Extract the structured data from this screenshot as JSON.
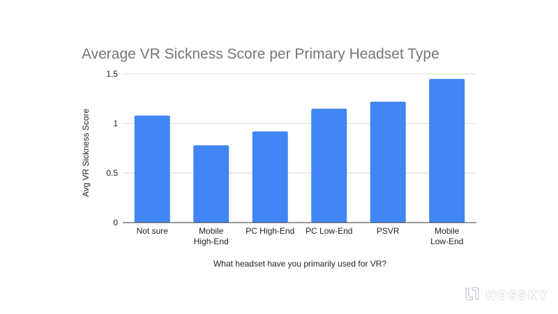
{
  "chart_data": {
    "type": "bar",
    "title": "Average VR Sickness Score per Primary Headset Type",
    "xlabel": "What headset have you primarily used for VR?",
    "ylabel": "Avg VR Sickness Score",
    "categories": [
      [
        "Not sure"
      ],
      [
        "Mobile",
        "High-End"
      ],
      [
        "PC High-End"
      ],
      [
        "PC Low-End"
      ],
      [
        "PSVR"
      ],
      [
        "Mobile",
        "Low-End"
      ]
    ],
    "values": [
      1.08,
      0.78,
      0.92,
      1.15,
      1.22,
      1.45
    ],
    "ylim": [
      0,
      1.5
    ],
    "yticks": [
      0,
      0.5,
      1,
      1.5
    ],
    "ytick_labels": [
      "0",
      "0.5",
      "1",
      "1.5"
    ],
    "grid": true,
    "legend": "none",
    "bar_color": "#4285f4"
  },
  "watermark": {
    "text": "HOSSKY",
    "icon": "hossky-logo-icon"
  }
}
